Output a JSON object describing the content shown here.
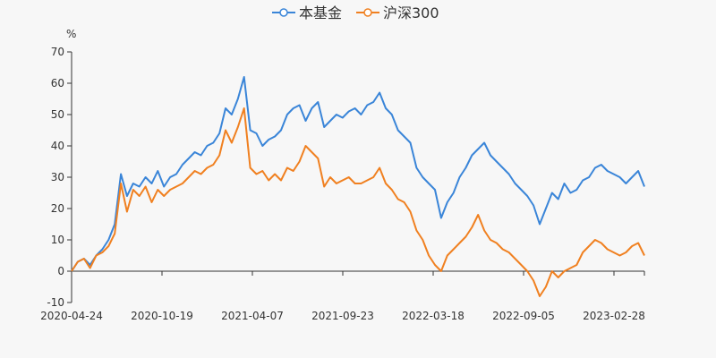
{
  "chart_data": {
    "type": "line",
    "title": "",
    "ylabel": "%",
    "xlabel": "",
    "ylim": [
      -10,
      70
    ],
    "yticks": [
      -10,
      0,
      10,
      20,
      30,
      40,
      50,
      60,
      70
    ],
    "xticks": [
      "2020-04-24",
      "2020-10-19",
      "2021-04-07",
      "2021-09-23",
      "2022-03-18",
      "2022-09-05",
      "2023-02-28"
    ],
    "grid": false,
    "legend_position": "top-center",
    "series": [
      {
        "name": "本基金",
        "color": "#3a85d8",
        "values": [
          0,
          3,
          4,
          2,
          5,
          7,
          10,
          15,
          31,
          24,
          28,
          27,
          30,
          28,
          32,
          27,
          30,
          31,
          34,
          36,
          38,
          37,
          40,
          41,
          44,
          52,
          50,
          55,
          62,
          45,
          44,
          40,
          42,
          43,
          45,
          50,
          52,
          53,
          48,
          52,
          54,
          46,
          48,
          50,
          49,
          51,
          52,
          50,
          53,
          54,
          57,
          52,
          50,
          45,
          43,
          41,
          33,
          30,
          28,
          26,
          17,
          22,
          25,
          30,
          33,
          37,
          39,
          41,
          37,
          35,
          33,
          31,
          28,
          26,
          24,
          21,
          15,
          20,
          25,
          23,
          28,
          25,
          26,
          29,
          30,
          33,
          34,
          32,
          31,
          30,
          28,
          30,
          32,
          27
        ]
      },
      {
        "name": "沪深300",
        "color": "#f08020",
        "values": [
          0,
          3,
          4,
          1,
          5,
          6,
          8,
          12,
          28,
          19,
          26,
          24,
          27,
          22,
          26,
          24,
          26,
          27,
          28,
          30,
          32,
          31,
          33,
          34,
          37,
          45,
          41,
          46,
          52,
          33,
          31,
          32,
          29,
          31,
          29,
          33,
          32,
          35,
          40,
          38,
          36,
          27,
          30,
          28,
          29,
          30,
          28,
          28,
          29,
          30,
          33,
          28,
          26,
          23,
          22,
          19,
          13,
          10,
          5,
          2,
          0,
          5,
          7,
          9,
          11,
          14,
          18,
          13,
          10,
          9,
          7,
          6,
          4,
          2,
          0,
          -3,
          -8,
          -5,
          0,
          -2,
          0,
          1,
          2,
          6,
          8,
          10,
          9,
          7,
          6,
          5,
          6,
          8,
          9,
          5
        ]
      }
    ]
  }
}
